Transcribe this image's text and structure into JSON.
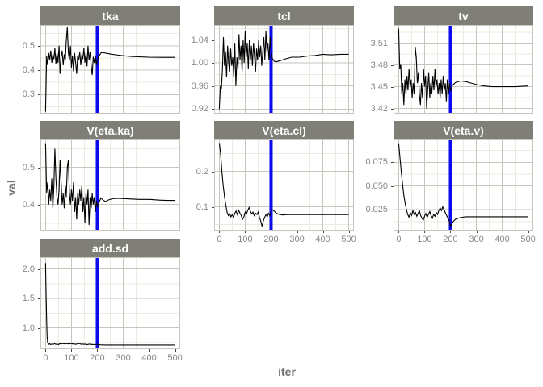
{
  "figure": {
    "background": "#ffffff"
  },
  "chart_data": {
    "type": "line",
    "title": "",
    "xlabel": "iter",
    "ylabel": "val",
    "xlim": [
      -20,
      520
    ],
    "x_major_ticks": [
      0,
      100,
      200,
      300,
      400,
      500
    ],
    "x_minor_ticks": [
      50,
      150,
      250,
      350,
      450
    ],
    "x_tick_labels": [
      "0",
      "100",
      "200",
      "300",
      "400",
      "500"
    ],
    "vline_x": 200,
    "grid": true,
    "legend": "none",
    "colors": {
      "strip_fill": "#7f7f78",
      "strip_text": "#ffffff",
      "grid_major": "#c6c6bc",
      "grid_minor": "#ebebdf",
      "panel_border": "#c6c6bc",
      "panel_fill": "#ffffff",
      "trace": "#000000",
      "vline": "#0b0bee",
      "tick_label": "#888888",
      "axis_title": "#717171"
    },
    "panels": [
      {
        "title": "tka",
        "row": 0,
        "col": 0,
        "show_x_labels": false,
        "ylim": [
          0.222,
          0.585
        ],
        "y_major_ticks": [
          0.3,
          0.4,
          0.5
        ],
        "y_tick_labels": [
          "0.3",
          "0.4",
          "0.5"
        ],
        "y_minor_ticks": [
          0.25,
          0.35,
          0.45,
          0.55
        ],
        "trace": [
          0,
          0.23,
          4,
          0.46,
          8,
          0.42,
          12,
          0.47,
          16,
          0.44,
          20,
          0.48,
          24,
          0.43,
          28,
          0.465,
          32,
          0.445,
          36,
          0.49,
          40,
          0.425,
          44,
          0.47,
          48,
          0.43,
          52,
          0.5,
          56,
          0.385,
          60,
          0.455,
          64,
          0.48,
          68,
          0.42,
          72,
          0.465,
          76,
          0.44,
          80,
          0.52,
          84,
          0.575,
          88,
          0.47,
          92,
          0.44,
          96,
          0.5,
          100,
          0.41,
          104,
          0.46,
          108,
          0.395,
          112,
          0.47,
          116,
          0.43,
          120,
          0.385,
          124,
          0.46,
          128,
          0.44,
          132,
          0.475,
          136,
          0.42,
          140,
          0.465,
          144,
          0.445,
          148,
          0.49,
          152,
          0.43,
          156,
          0.47,
          160,
          0.415,
          164,
          0.5,
          168,
          0.44,
          172,
          0.475,
          176,
          0.42,
          180,
          0.38,
          184,
          0.455,
          188,
          0.43,
          192,
          0.46,
          196,
          0.42,
          200,
          0.44,
          205,
          0.455,
          215,
          0.472,
          230,
          0.47,
          250,
          0.466,
          270,
          0.463,
          300,
          0.459,
          330,
          0.456,
          360,
          0.4545,
          400,
          0.453,
          450,
          0.4525,
          500,
          0.4525
        ]
      },
      {
        "title": "tcl",
        "row": 0,
        "col": 1,
        "show_x_labels": false,
        "ylim": [
          0.912,
          1.066
        ],
        "y_major_ticks": [
          0.92,
          0.96,
          1.0,
          1.04
        ],
        "y_tick_labels": [
          "0.92",
          "0.96",
          "1.00",
          "1.04"
        ],
        "y_minor_ticks": [
          0.94,
          0.98,
          1.02,
          1.06
        ],
        "trace": [
          0,
          0.92,
          4,
          0.96,
          8,
          0.955,
          12,
          0.99,
          16,
          1.045,
          20,
          0.995,
          24,
          1.02,
          28,
          0.975,
          32,
          1.03,
          36,
          1.0,
          40,
          0.985,
          44,
          1.025,
          48,
          0.995,
          52,
          1.01,
          56,
          0.975,
          60,
          1.035,
          64,
          0.96,
          68,
          1.01,
          72,
          0.99,
          76,
          1.05,
          80,
          1.005,
          84,
          1.03,
          88,
          0.985,
          92,
          1.04,
          96,
          1.0,
          100,
          1.055,
          104,
          1.01,
          108,
          1.035,
          112,
          0.99,
          116,
          1.04,
          120,
          1.005,
          124,
          1.03,
          128,
          0.995,
          132,
          1.035,
          136,
          1.01,
          140,
          0.985,
          144,
          1.025,
          148,
          1.005,
          152,
          1.04,
          156,
          1.01,
          160,
          1.03,
          164,
          0.995,
          168,
          1.02,
          172,
          1.045,
          176,
          1.005,
          180,
          1.055,
          184,
          1.02,
          188,
          1.035,
          192,
          1.005,
          196,
          1.045,
          200,
          1.02,
          205,
          1.008,
          212,
          1.003,
          220,
          1.002,
          235,
          1.004,
          255,
          1.007,
          280,
          1.01,
          310,
          1.01,
          340,
          1.012,
          370,
          1.013,
          400,
          1.015,
          430,
          1.014,
          470,
          1.015,
          500,
          1.015
        ]
      },
      {
        "title": "tv",
        "row": 0,
        "col": 2,
        "show_x_labels": false,
        "ylim": [
          3.413,
          3.535
        ],
        "y_major_ticks": [
          3.42,
          3.45,
          3.48,
          3.51
        ],
        "y_tick_labels": [
          "3.42",
          "3.45",
          "3.48",
          "3.51"
        ],
        "y_minor_ticks": [
          3.435,
          3.465,
          3.495,
          3.525
        ],
        "trace": [
          0,
          3.53,
          4,
          3.475,
          8,
          3.48,
          12,
          3.44,
          16,
          3.455,
          20,
          3.425,
          24,
          3.46,
          28,
          3.44,
          32,
          3.465,
          36,
          3.445,
          40,
          3.475,
          44,
          3.45,
          48,
          3.46,
          52,
          3.435,
          56,
          3.455,
          60,
          3.44,
          64,
          3.505,
          68,
          3.49,
          72,
          3.455,
          76,
          3.47,
          80,
          3.44,
          84,
          3.425,
          88,
          3.455,
          92,
          3.435,
          96,
          3.475,
          100,
          3.45,
          104,
          3.465,
          108,
          3.42,
          112,
          3.445,
          116,
          3.47,
          120,
          3.435,
          124,
          3.455,
          128,
          3.44,
          132,
          3.465,
          136,
          3.445,
          140,
          3.475,
          144,
          3.45,
          148,
          3.46,
          152,
          3.44,
          156,
          3.455,
          160,
          3.435,
          164,
          3.46,
          168,
          3.44,
          172,
          3.465,
          176,
          3.445,
          180,
          3.455,
          184,
          3.43,
          188,
          3.46,
          192,
          3.44,
          196,
          3.455,
          200,
          3.445,
          208,
          3.452,
          220,
          3.456,
          240,
          3.458,
          260,
          3.457,
          280,
          3.455,
          300,
          3.453,
          330,
          3.451,
          360,
          3.45,
          400,
          3.45,
          450,
          3.45,
          500,
          3.451
        ]
      },
      {
        "title": "V(eta.ka)",
        "row": 1,
        "col": 0,
        "show_x_labels": false,
        "ylim": [
          0.33,
          0.575
        ],
        "y_major_ticks": [
          0.4,
          0.5
        ],
        "y_tick_labels": [
          "0.4",
          "0.5"
        ],
        "y_minor_ticks": [
          0.35,
          0.45,
          0.55
        ],
        "trace": [
          0,
          0.565,
          4,
          0.43,
          8,
          0.46,
          12,
          0.4,
          16,
          0.44,
          20,
          0.41,
          24,
          0.47,
          28,
          0.39,
          32,
          0.45,
          36,
          0.55,
          40,
          0.47,
          44,
          0.42,
          48,
          0.4,
          52,
          0.44,
          56,
          0.52,
          60,
          0.46,
          64,
          0.4,
          68,
          0.43,
          72,
          0.39,
          76,
          0.45,
          80,
          0.42,
          84,
          0.5,
          88,
          0.52,
          92,
          0.43,
          96,
          0.4,
          100,
          0.44,
          104,
          0.41,
          108,
          0.46,
          112,
          0.38,
          116,
          0.42,
          120,
          0.36,
          124,
          0.43,
          128,
          0.4,
          132,
          0.44,
          136,
          0.41,
          140,
          0.45,
          144,
          0.38,
          148,
          0.42,
          152,
          0.35,
          156,
          0.43,
          160,
          0.4,
          164,
          0.44,
          168,
          0.345,
          172,
          0.42,
          176,
          0.39,
          180,
          0.43,
          184,
          0.4,
          188,
          0.42,
          192,
          0.38,
          196,
          0.41,
          200,
          0.395,
          206,
          0.405,
          214,
          0.418,
          222,
          0.412,
          232,
          0.408,
          245,
          0.413,
          260,
          0.416,
          280,
          0.417,
          300,
          0.416,
          330,
          0.415,
          360,
          0.414,
          400,
          0.414,
          440,
          0.412,
          470,
          0.411,
          500,
          0.411
        ]
      },
      {
        "title": "V(eta.cl)",
        "row": 1,
        "col": 1,
        "show_x_labels": true,
        "ylim": [
          0.033,
          0.29
        ],
        "y_major_ticks": [
          0.1,
          0.2
        ],
        "y_tick_labels": [
          "0.1",
          "0.2"
        ],
        "y_minor_ticks": [
          0.05,
          0.15,
          0.25
        ],
        "trace": [
          0,
          0.28,
          5,
          0.25,
          10,
          0.2,
          15,
          0.16,
          20,
          0.13,
          25,
          0.105,
          30,
          0.085,
          35,
          0.075,
          40,
          0.08,
          45,
          0.072,
          50,
          0.078,
          55,
          0.07,
          60,
          0.082,
          65,
          0.088,
          70,
          0.078,
          75,
          0.09,
          80,
          0.082,
          85,
          0.075,
          90,
          0.065,
          95,
          0.072,
          100,
          0.085,
          105,
          0.08,
          110,
          0.09,
          115,
          0.098,
          120,
          0.088,
          125,
          0.08,
          130,
          0.085,
          135,
          0.075,
          140,
          0.082,
          145,
          0.078,
          150,
          0.085,
          155,
          0.07,
          160,
          0.06,
          165,
          0.045,
          170,
          0.06,
          175,
          0.07,
          180,
          0.078,
          185,
          0.072,
          190,
          0.082,
          195,
          0.075,
          200,
          0.088,
          205,
          0.092,
          212,
          0.088,
          220,
          0.082,
          230,
          0.079,
          245,
          0.077,
          260,
          0.078,
          300,
          0.078,
          350,
          0.078,
          400,
          0.078,
          450,
          0.078,
          500,
          0.078
        ]
      },
      {
        "title": "V(eta.v)",
        "row": 1,
        "col": 2,
        "show_x_labels": true,
        "ylim": [
          0.003,
          0.099
        ],
        "y_major_ticks": [
          0.025,
          0.05,
          0.075
        ],
        "y_tick_labels": [
          "0.025",
          "0.050",
          "0.075"
        ],
        "y_minor_ticks": [
          0.0125,
          0.0375,
          0.0625,
          0.0875
        ],
        "trace": [
          0,
          0.095,
          5,
          0.08,
          10,
          0.065,
          15,
          0.052,
          20,
          0.04,
          25,
          0.032,
          30,
          0.025,
          35,
          0.02,
          40,
          0.017,
          45,
          0.022,
          50,
          0.019,
          55,
          0.024,
          60,
          0.02,
          65,
          0.022,
          70,
          0.018,
          75,
          0.021,
          80,
          0.024,
          85,
          0.019,
          90,
          0.016,
          95,
          0.014,
          100,
          0.018,
          105,
          0.021,
          110,
          0.017,
          115,
          0.02,
          120,
          0.023,
          125,
          0.019,
          130,
          0.016,
          135,
          0.02,
          140,
          0.018,
          145,
          0.022,
          150,
          0.02,
          155,
          0.024,
          160,
          0.027,
          165,
          0.024,
          170,
          0.028,
          175,
          0.025,
          180,
          0.022,
          185,
          0.019,
          190,
          0.016,
          195,
          0.013,
          200,
          0.008,
          205,
          0.01,
          212,
          0.013,
          220,
          0.015,
          230,
          0.016,
          245,
          0.017,
          260,
          0.0175,
          300,
          0.0175,
          350,
          0.0175,
          400,
          0.0175,
          450,
          0.0175,
          500,
          0.0175
        ]
      },
      {
        "title": "add.sd",
        "row": 2,
        "col": 0,
        "show_x_labels": true,
        "ylim": [
          0.64,
          2.2
        ],
        "y_major_ticks": [
          1.0,
          1.5,
          2.0
        ],
        "y_tick_labels": [
          "1.0",
          "1.5",
          "2.0"
        ],
        "y_minor_ticks": [
          0.75,
          1.25,
          1.75
        ],
        "trace": [
          0,
          2.1,
          2,
          1.6,
          4,
          1.15,
          6,
          0.85,
          8,
          0.75,
          12,
          0.72,
          16,
          0.73,
          20,
          0.715,
          25,
          0.725,
          30,
          0.72,
          35,
          0.73,
          40,
          0.72,
          45,
          0.725,
          50,
          0.715,
          55,
          0.73,
          60,
          0.725,
          65,
          0.735,
          70,
          0.73,
          75,
          0.725,
          80,
          0.735,
          85,
          0.73,
          90,
          0.725,
          95,
          0.73,
          100,
          0.735,
          105,
          0.725,
          110,
          0.73,
          115,
          0.72,
          120,
          0.725,
          125,
          0.73,
          130,
          0.735,
          135,
          0.725,
          140,
          0.72,
          145,
          0.725,
          150,
          0.72,
          155,
          0.725,
          160,
          0.715,
          165,
          0.72,
          170,
          0.725,
          175,
          0.715,
          180,
          0.72,
          185,
          0.715,
          190,
          0.72,
          195,
          0.715,
          200,
          0.72,
          210,
          0.712,
          230,
          0.71,
          260,
          0.71,
          300,
          0.71,
          350,
          0.71,
          400,
          0.71,
          450,
          0.71,
          500,
          0.71
        ]
      }
    ]
  }
}
